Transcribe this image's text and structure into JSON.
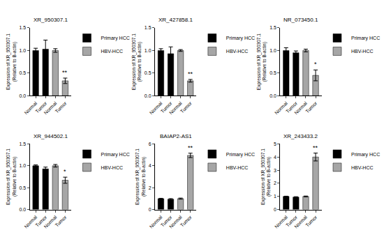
{
  "chart_data": [
    {
      "type": "bar",
      "title": "XR_950307.1",
      "y_label": "Expression of XR_950307.1\n(Relative to B-actin)",
      "categories": [
        "Normal",
        "Tumor",
        "Normal",
        "Tumor"
      ],
      "series": [
        {
          "name": "Primary HCC",
          "color": "#000000",
          "values": [
            1.0,
            1.03,
            null,
            null
          ],
          "errors": [
            0.05,
            0.2,
            null,
            null
          ]
        },
        {
          "name": "HBV-HCC",
          "color": "#a6a6a6",
          "values": [
            null,
            null,
            1.0,
            0.33
          ],
          "errors": [
            null,
            null,
            0.04,
            0.06
          ]
        }
      ],
      "significance": [
        null,
        null,
        null,
        "**"
      ],
      "ylim": [
        0,
        1.5
      ],
      "yticks": [
        {
          "value": 0,
          "label": "0.0"
        },
        {
          "value": 0.5,
          "label": "0.5"
        },
        {
          "value": 1,
          "label": "1.0"
        },
        {
          "value": 1.5,
          "label": "1.5"
        }
      ],
      "grid": false,
      "legend": "right"
    },
    {
      "type": "bar",
      "title": "XR_427858.1",
      "y_label": "Expression of XR_950307.1\n(Relative to B-actin)",
      "categories": [
        "Normal",
        "Tumor",
        "Normal",
        "Tumor"
      ],
      "series": [
        {
          "name": "Primary HCC",
          "color": "#000000",
          "values": [
            1.0,
            0.93,
            null,
            null
          ],
          "errors": [
            0.04,
            0.15,
            null,
            null
          ]
        },
        {
          "name": "HBV-HCC",
          "color": "#a6a6a6",
          "values": [
            null,
            null,
            1.0,
            0.33
          ],
          "errors": [
            null,
            null,
            0.02,
            0.03
          ]
        }
      ],
      "significance": [
        null,
        null,
        null,
        "**"
      ],
      "ylim": [
        0,
        1.5
      ],
      "yticks": [
        {
          "value": 0,
          "label": "0.0"
        },
        {
          "value": 0.5,
          "label": "0.5"
        },
        {
          "value": 1,
          "label": "1.0"
        },
        {
          "value": 1.5,
          "label": "1.5"
        }
      ],
      "grid": false,
      "legend": "right"
    },
    {
      "type": "bar",
      "title": "NR_073450.1",
      "y_label": "Expression of XR_950307.1\n(Relative to B-actin)",
      "categories": [
        "Normal",
        "Tumor",
        "Normal",
        "Tumor"
      ],
      "series": [
        {
          "name": "Primary HCC",
          "color": "#000000",
          "values": [
            1.0,
            0.95,
            null,
            null
          ],
          "errors": [
            0.06,
            0.04,
            null,
            null
          ]
        },
        {
          "name": "HBV-HCC",
          "color": "#a6a6a6",
          "values": [
            null,
            null,
            1.0,
            0.45
          ],
          "errors": [
            null,
            null,
            0.03,
            0.12
          ]
        }
      ],
      "significance": [
        null,
        null,
        null,
        "*"
      ],
      "ylim": [
        0,
        1.5
      ],
      "yticks": [
        {
          "value": 0,
          "label": "0.0"
        },
        {
          "value": 0.5,
          "label": "0.5"
        },
        {
          "value": 1,
          "label": "1.0"
        },
        {
          "value": 1.5,
          "label": "1.5"
        }
      ],
      "grid": false,
      "legend": "right"
    },
    {
      "type": "bar",
      "title": "XR_944502.1",
      "y_label": "Expression of XR_950307.1\n(Relative to B-actin)",
      "categories": [
        "Normal",
        "Tumor",
        "Normal",
        "Tumor"
      ],
      "series": [
        {
          "name": "Primary HCC",
          "color": "#000000",
          "values": [
            1.0,
            0.93,
            null,
            null
          ],
          "errors": [
            0.02,
            0.04,
            null,
            null
          ]
        },
        {
          "name": "HBV-HCC",
          "color": "#a6a6a6",
          "values": [
            null,
            null,
            1.0,
            0.67
          ],
          "errors": [
            null,
            null,
            0.03,
            0.07
          ]
        }
      ],
      "significance": [
        null,
        null,
        null,
        "*"
      ],
      "ylim": [
        0,
        1.5
      ],
      "yticks": [
        {
          "value": 0,
          "label": "0.0"
        },
        {
          "value": 0.5,
          "label": "0.5"
        },
        {
          "value": 1,
          "label": "1.0"
        },
        {
          "value": 1.5,
          "label": "1.5"
        }
      ],
      "grid": false,
      "legend": "right"
    },
    {
      "type": "bar",
      "title": "BAIAP2-AS1",
      "y_label": "Expression of XR_950307.1\n(Relative to B-actin)",
      "categories": [
        "Normal",
        "Tumor",
        "Normal",
        "Tumor"
      ],
      "series": [
        {
          "name": "Primary HCC",
          "color": "#000000",
          "values": [
            1.0,
            0.95,
            null,
            null
          ],
          "errors": [
            0.03,
            0.05,
            null,
            null
          ]
        },
        {
          "name": "HBV-HCC",
          "color": "#a6a6a6",
          "values": [
            null,
            null,
            1.0,
            4.95
          ],
          "errors": [
            null,
            null,
            0.05,
            0.2
          ]
        }
      ],
      "significance": [
        null,
        null,
        null,
        "**"
      ],
      "ylim": [
        0,
        6
      ],
      "yticks": [
        0,
        2,
        4,
        6
      ],
      "grid": false,
      "legend": "right"
    },
    {
      "type": "bar",
      "title": "XR_243433.2",
      "y_label": "Expression of XR_950307.1\n(Relative to B-actin)",
      "categories": [
        "Normal",
        "Tumor",
        "Normal",
        "Tumor"
      ],
      "series": [
        {
          "name": "Primary HCC",
          "color": "#000000",
          "values": [
            1.0,
            0.95,
            null,
            null
          ],
          "errors": [
            0.02,
            0.03,
            null,
            null
          ]
        },
        {
          "name": "HBV-HCC",
          "color": "#a6a6a6",
          "values": [
            null,
            null,
            1.0,
            4.0
          ],
          "errors": [
            null,
            null,
            0.03,
            0.3
          ]
        }
      ],
      "significance": [
        null,
        null,
        null,
        "**"
      ],
      "ylim": [
        0,
        5
      ],
      "yticks": [
        0,
        1,
        2,
        3,
        4,
        5
      ],
      "grid": false,
      "legend": "right"
    }
  ]
}
